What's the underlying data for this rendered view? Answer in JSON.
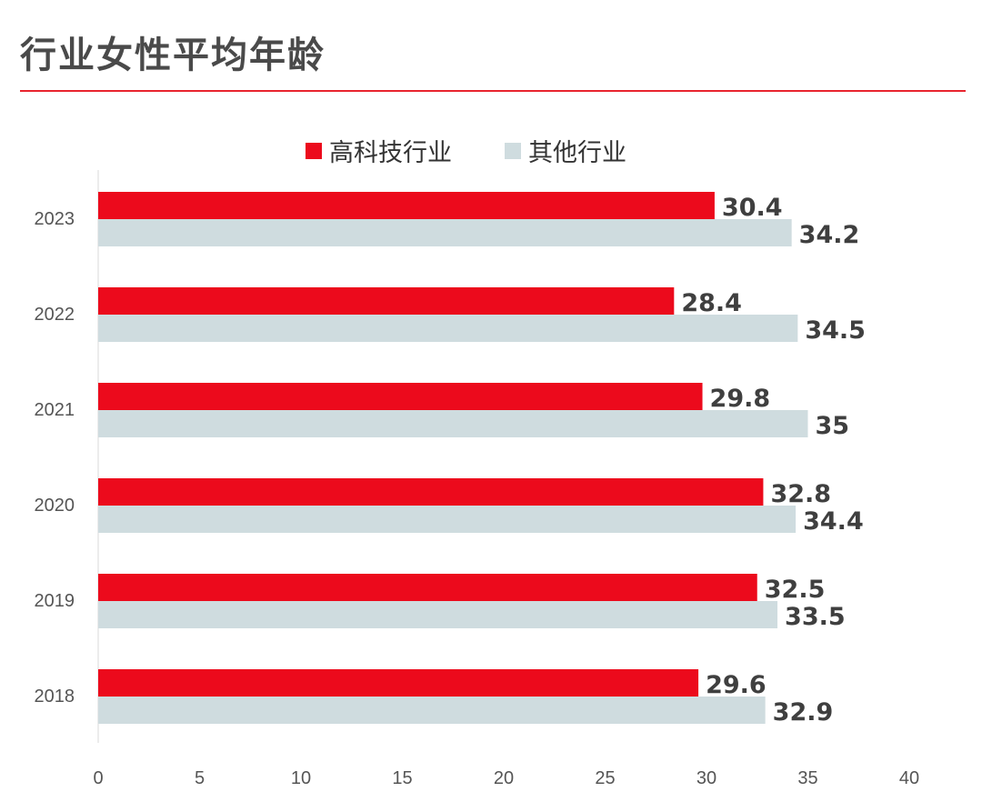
{
  "title": "行业女性平均年龄",
  "colors": {
    "title_rule": "#e8242e",
    "series_a": "#ec0a1c",
    "series_b": "#cfdcdf",
    "axis": "#d9d9d9",
    "text": "#3f3f3f"
  },
  "chart_data": {
    "type": "bar",
    "orientation": "horizontal",
    "categories": [
      "2023",
      "2022",
      "2021",
      "2020",
      "2019",
      "2018"
    ],
    "series": [
      {
        "name": "高科技行业",
        "color": "#ec0a1c",
        "values": [
          30.4,
          28.4,
          29.8,
          32.8,
          32.5,
          29.6
        ]
      },
      {
        "name": "其他行业",
        "color": "#cfdcdf",
        "values": [
          34.2,
          34.5,
          35,
          34.4,
          33.5,
          32.9
        ]
      }
    ],
    "xlim": [
      0,
      40
    ],
    "xticks": [
      0,
      5,
      10,
      15,
      20,
      25,
      30,
      35,
      40
    ],
    "legend_position": "top-center",
    "grid": false,
    "data_labels": true
  }
}
